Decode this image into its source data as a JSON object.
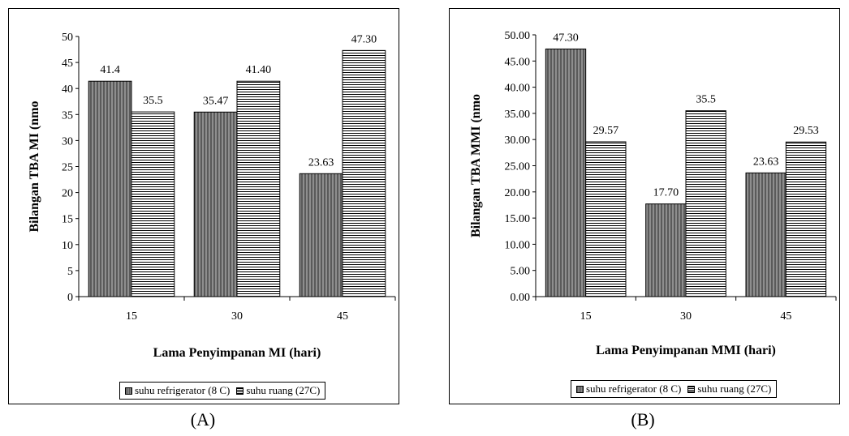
{
  "colors": {
    "fridge_dark": "#5a5a5a",
    "fridge_light": "#8e8e8e",
    "room_line": "#000000",
    "background": "#ffffff"
  },
  "captions": {
    "A": "(A)",
    "B": "(B)"
  },
  "chart_data": [
    {
      "type": "bar",
      "categories": [
        "15",
        "30",
        "45"
      ],
      "series": [
        {
          "name": "suhu refrigerator (8 C)",
          "values": [
            41.4,
            35.47,
            23.63
          ],
          "labels": [
            "41.4",
            "35.47",
            "23.63"
          ],
          "pattern": "vertical-stripes"
        },
        {
          "name": "suhu ruang (27C)",
          "values": [
            35.5,
            41.4,
            47.3
          ],
          "labels": [
            "35.5",
            "41.40",
            "47.30"
          ],
          "pattern": "horizontal-lines"
        }
      ],
      "yticks": [
        "0",
        "5",
        "10",
        "15",
        "20",
        "25",
        "30",
        "35",
        "40",
        "45",
        "50"
      ],
      "ylim": [
        0,
        50
      ],
      "xlabel": "Lama Penyimpanan MI (hari)",
      "ylabel": "Bilangan TBA MI (nmo",
      "grid": false,
      "legend_position": "bottom"
    },
    {
      "type": "bar",
      "categories": [
        "15",
        "30",
        "45"
      ],
      "series": [
        {
          "name": "suhu refrigerator (8 C)",
          "values": [
            47.3,
            17.7,
            23.63
          ],
          "labels": [
            "47.30",
            "17.70",
            "23.63"
          ],
          "pattern": "vertical-stripes"
        },
        {
          "name": "suhu ruang (27C)",
          "values": [
            29.57,
            35.5,
            29.53
          ],
          "labels": [
            "29.57",
            "35.5",
            "29.53"
          ],
          "pattern": "horizontal-lines"
        }
      ],
      "yticks": [
        "0.00",
        "5.00",
        "10.00",
        "15.00",
        "20.00",
        "25.00",
        "30.00",
        "35.00",
        "40.00",
        "45.00",
        "50.00"
      ],
      "ylim": [
        0,
        50
      ],
      "xlabel": "Lama Penyimpanan MMI (hari)",
      "ylabel": "Bilangan TBA MMI (nmo",
      "grid": false,
      "legend_position": "bottom"
    }
  ]
}
